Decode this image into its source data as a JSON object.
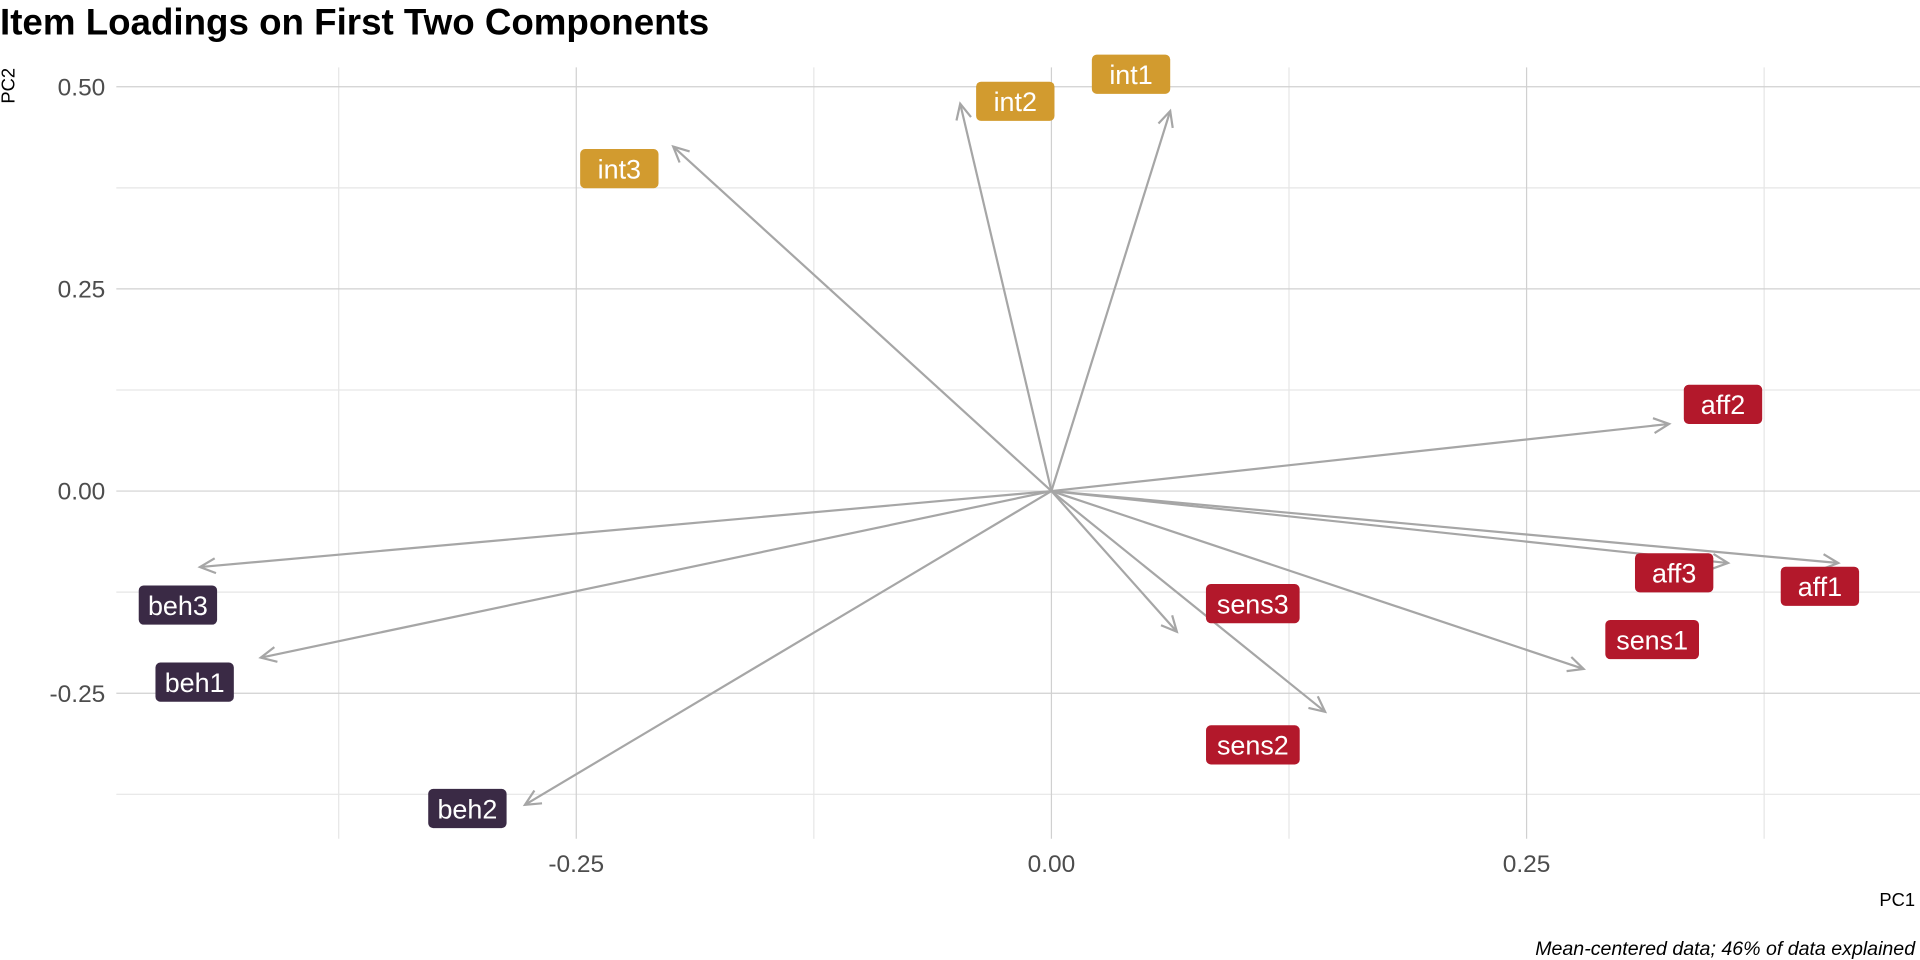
{
  "chart_data": {
    "type": "biplot-arrows",
    "title": "Item Loadings on First Two Components",
    "xlabel": "PC1",
    "ylabel": "PC2",
    "caption": "Mean-centered data; 46% of data explained",
    "xlim": [
      -0.492,
      0.457
    ],
    "ylim": [
      -0.43,
      0.524
    ],
    "x_ticks": [
      -0.25,
      0.0,
      0.25
    ],
    "x_tick_labels": [
      "-0.25",
      "0.00",
      "0.25"
    ],
    "y_ticks": [
      -0.25,
      0.0,
      0.25,
      0.5
    ],
    "y_tick_labels": [
      "-0.25",
      "0.00",
      "0.25",
      "0.50"
    ],
    "grid": true,
    "arrow_color": "#A6A6A6",
    "group_colors": {
      "int": "#D29B2F",
      "aff": "#B3182B",
      "sens": "#B3182B",
      "beh": "#3A2A45"
    },
    "items": [
      {
        "name": "int1",
        "group": "int",
        "pc1": 0.0625,
        "pc2": 0.47
      },
      {
        "name": "int2",
        "group": "int",
        "pc1": -0.048,
        "pc2": 0.479
      },
      {
        "name": "int3",
        "group": "int",
        "pc1": -0.199,
        "pc2": 0.426
      },
      {
        "name": "aff1",
        "group": "aff",
        "pc1": 0.414,
        "pc2": -0.089
      },
      {
        "name": "aff2",
        "group": "aff",
        "pc1": 0.325,
        "pc2": 0.083
      },
      {
        "name": "aff3",
        "group": "aff",
        "pc1": 0.356,
        "pc2": -0.089
      },
      {
        "name": "sens1",
        "group": "sens",
        "pc1": 0.28,
        "pc2": -0.22
      },
      {
        "name": "sens2",
        "group": "sens",
        "pc1": 0.144,
        "pc2": -0.273
      },
      {
        "name": "sens3",
        "group": "sens",
        "pc1": 0.066,
        "pc2": -0.174
      },
      {
        "name": "beh1",
        "group": "beh",
        "pc1": -0.416,
        "pc2": -0.206
      },
      {
        "name": "beh2",
        "group": "beh",
        "pc1": -0.277,
        "pc2": -0.388
      },
      {
        "name": "beh3",
        "group": "beh",
        "pc1": -0.448,
        "pc2": -0.094
      }
    ]
  }
}
